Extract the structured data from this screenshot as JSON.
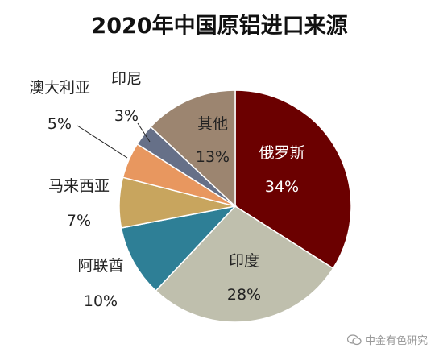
{
  "chart_data": {
    "type": "pie",
    "title": "2020年中国原铝进口来源",
    "slices": [
      {
        "label": "俄罗斯",
        "value": 34,
        "value_label": "34%",
        "color": "#6b0000"
      },
      {
        "label": "印度",
        "value": 28,
        "value_label": "28%",
        "color": "#bfbfad"
      },
      {
        "label": "阿联酋",
        "value": 10,
        "value_label": "10%",
        "color": "#2e7f96"
      },
      {
        "label": "马来西亚",
        "value": 7,
        "value_label": "7%",
        "color": "#c8a55e"
      },
      {
        "label": "澳大利亚",
        "value": 5,
        "value_label": "5%",
        "color": "#e8975f"
      },
      {
        "label": "印尼",
        "value": 3,
        "value_label": "3%",
        "color": "#667088"
      },
      {
        "label": "其他",
        "value": 13,
        "value_label": "13%",
        "color": "#9c8570"
      }
    ],
    "start_angle_deg": 0,
    "direction": "clockwise",
    "legend": "none"
  },
  "watermark": {
    "text": "中金有色研究",
    "icon": "wechat-icon"
  }
}
